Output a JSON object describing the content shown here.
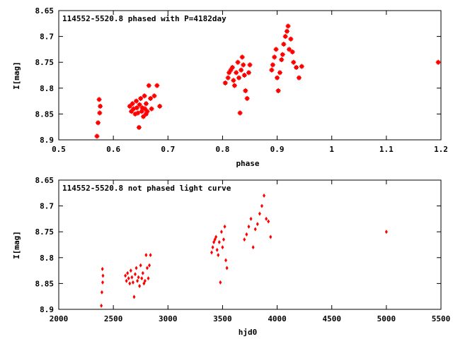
{
  "colors": {
    "points": "#ff0000",
    "axes": "#000000",
    "background": "#ffffff"
  },
  "chart_data": [
    {
      "type": "scatter",
      "title": "114552-5520.8 phased with P=4182day",
      "xlabel": "phase",
      "ylabel": "I[mag]",
      "xlim": [
        0.5,
        1.2
      ],
      "ylim": [
        8.9,
        8.65
      ],
      "y_inverted": true,
      "x_ticks": [
        "0.5",
        "0.6",
        "0.7",
        "0.8",
        "0.9",
        "1",
        "1.1",
        "1.2"
      ],
      "y_ticks": [
        "8.65",
        "8.7",
        "8.75",
        "8.8",
        "8.85",
        "8.9"
      ],
      "grid": false,
      "marker": "filled-star",
      "series": [
        {
          "x": [
            0.57,
            0.572,
            0.574,
            0.575,
            0.576,
            0.63,
            0.633,
            0.635,
            0.637,
            0.64,
            0.642,
            0.643,
            0.645,
            0.647,
            0.648,
            0.65,
            0.652,
            0.653,
            0.655,
            0.657,
            0.658,
            0.66,
            0.66,
            0.662,
            0.665,
            0.668,
            0.67,
            0.675,
            0.68,
            0.685,
            0.805,
            0.81,
            0.812,
            0.815,
            0.818,
            0.82,
            0.822,
            0.825,
            0.828,
            0.83,
            0.832,
            0.834,
            0.836,
            0.838,
            0.84,
            0.842,
            0.845,
            0.848,
            0.85,
            0.89,
            0.892,
            0.895,
            0.898,
            0.9,
            0.902,
            0.905,
            0.908,
            0.91,
            0.912,
            0.915,
            0.918,
            0.92,
            0.922,
            0.925,
            0.928,
            0.93,
            0.935,
            0.94,
            0.945,
            1.195
          ],
          "y": [
            8.893,
            8.867,
            8.822,
            8.848,
            8.835,
            8.835,
            8.845,
            8.83,
            8.84,
            8.85,
            8.825,
            8.838,
            8.848,
            8.876,
            8.832,
            8.82,
            8.845,
            8.838,
            8.855,
            8.815,
            8.84,
            8.83,
            8.85,
            8.845,
            8.795,
            8.82,
            8.84,
            8.815,
            8.795,
            8.835,
            8.79,
            8.78,
            8.77,
            8.765,
            8.76,
            8.785,
            8.795,
            8.77,
            8.75,
            8.78,
            8.848,
            8.765,
            8.74,
            8.755,
            8.775,
            8.805,
            8.82,
            8.77,
            8.755,
            8.765,
            8.755,
            8.74,
            8.725,
            8.78,
            8.805,
            8.77,
            8.745,
            8.735,
            8.715,
            8.7,
            8.69,
            8.68,
            8.725,
            8.705,
            8.73,
            8.75,
            8.76,
            8.78,
            8.758,
            8.75
          ]
        }
      ]
    },
    {
      "type": "scatter",
      "title": "114552-5520.8 not phased light curve",
      "xlabel": "hjd0",
      "ylabel": "I[mag]",
      "xlim": [
        2000,
        5500
      ],
      "ylim": [
        8.9,
        8.65
      ],
      "y_inverted": true,
      "x_ticks": [
        "2000",
        "2500",
        "3000",
        "3500",
        "4000",
        "4500",
        "5000",
        "5500"
      ],
      "y_ticks": [
        "8.65",
        "8.7",
        "8.75",
        "8.8",
        "8.85",
        "8.9"
      ],
      "grid": false,
      "marker": "diamond",
      "series": [
        {
          "x": [
            2390,
            2395,
            2400,
            2402,
            2405,
            2610,
            2620,
            2630,
            2640,
            2650,
            2660,
            2670,
            2680,
            2690,
            2700,
            2710,
            2720,
            2730,
            2740,
            2750,
            2760,
            2770,
            2780,
            2790,
            2800,
            2810,
            2820,
            2830,
            2840,
            3400,
            3410,
            3420,
            3430,
            3440,
            3450,
            3460,
            3470,
            3480,
            3490,
            3500,
            3510,
            3520,
            3530,
            3540,
            3700,
            3720,
            3740,
            3760,
            3780,
            3800,
            3820,
            3840,
            3860,
            3880,
            3900,
            3920,
            3940,
            5000
          ],
          "y": [
            8.893,
            8.867,
            8.822,
            8.848,
            8.835,
            8.835,
            8.845,
            8.83,
            8.84,
            8.85,
            8.825,
            8.838,
            8.848,
            8.876,
            8.832,
            8.82,
            8.845,
            8.838,
            8.855,
            8.815,
            8.84,
            8.83,
            8.85,
            8.845,
            8.795,
            8.82,
            8.84,
            8.815,
            8.795,
            8.79,
            8.78,
            8.77,
            8.765,
            8.76,
            8.785,
            8.795,
            8.77,
            8.848,
            8.75,
            8.78,
            8.765,
            8.74,
            8.805,
            8.82,
            8.765,
            8.755,
            8.74,
            8.725,
            8.78,
            8.745,
            8.735,
            8.715,
            8.7,
            8.68,
            8.725,
            8.73,
            8.76,
            8.75
          ]
        }
      ]
    }
  ]
}
